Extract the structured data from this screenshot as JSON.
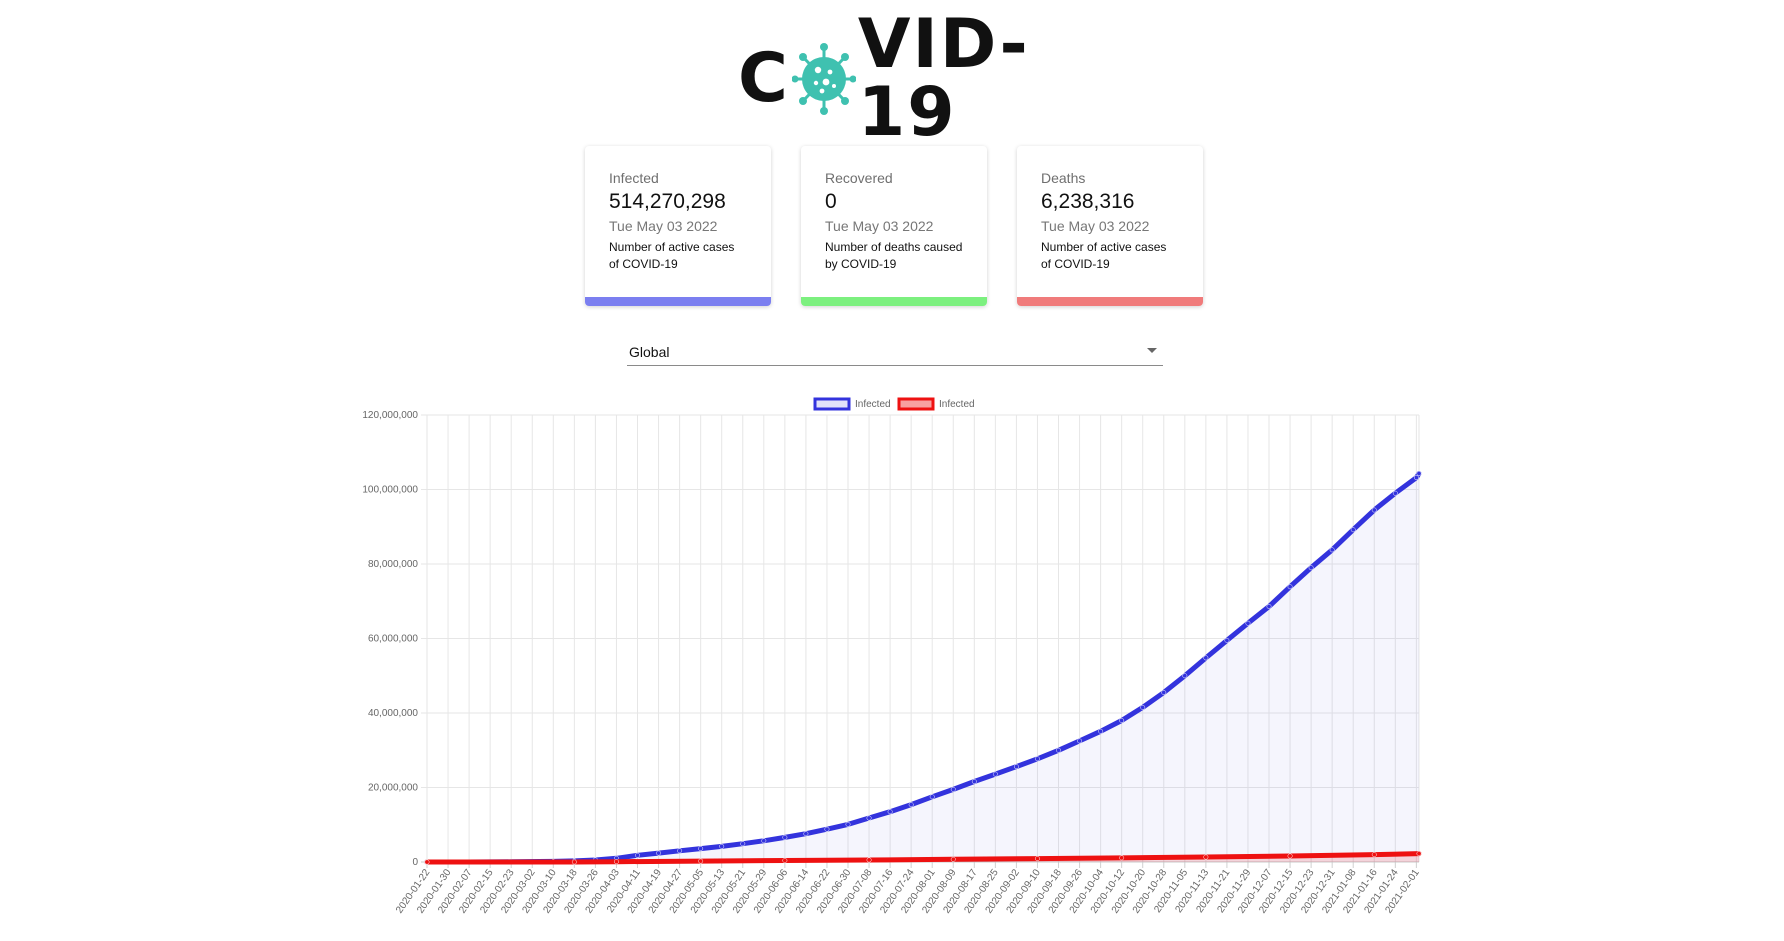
{
  "logo": {
    "text_before": "C",
    "text_after": "VID-19",
    "virus_icon": "virus-icon",
    "virus_color": "#3fc1b0"
  },
  "cards": [
    {
      "label": "Infected",
      "value": "514,270,298",
      "date": "Tue May 03 2022",
      "description": "Number of active cases of COVID-19",
      "bar_color": "#7b7ff0"
    },
    {
      "label": "Recovered",
      "value": "0",
      "date": "Tue May 03 2022",
      "description": "Number of deaths caused by COVID-19",
      "bar_color": "#7cf07f"
    },
    {
      "label": "Deaths",
      "value": "6,238,316",
      "date": "Tue May 03 2022",
      "description": "Number of active cases of COVID-19",
      "bar_color": "#f07b7b"
    }
  ],
  "country_select": {
    "value": "Global"
  },
  "chart_data": {
    "type": "line",
    "legend_position": "top",
    "grid": true,
    "ylim": [
      0,
      120000000
    ],
    "y_ticks": [
      0,
      20000000,
      40000000,
      60000000,
      80000000,
      100000000,
      120000000
    ],
    "y_tick_labels": [
      "0",
      "20,000,000",
      "40,000,000",
      "60,000,000",
      "80,000,000",
      "100,000,000",
      "120,000,000"
    ],
    "x_tick_labels": [
      "2020-01-22",
      "2020-01-30",
      "2020-02-07",
      "2020-02-15",
      "2020-02-23",
      "2020-03-02",
      "2020-03-10",
      "2020-03-18",
      "2020-03-26",
      "2020-04-03",
      "2020-04-11",
      "2020-04-19",
      "2020-04-27",
      "2020-05-05",
      "2020-05-13",
      "2020-05-21",
      "2020-05-29",
      "2020-06-06",
      "2020-06-14",
      "2020-06-22",
      "2020-06-30",
      "2020-07-08",
      "2020-07-16",
      "2020-07-24",
      "2020-08-01",
      "2020-08-09",
      "2020-08-17",
      "2020-08-25",
      "2020-09-02",
      "2020-09-10",
      "2020-09-18",
      "2020-09-26",
      "2020-10-04",
      "2020-10-12",
      "2020-10-20",
      "2020-10-28",
      "2020-11-05",
      "2020-11-13",
      "2020-11-21",
      "2020-11-29",
      "2020-12-07",
      "2020-12-15",
      "2020-12-23",
      "2020-12-31",
      "2021-01-08",
      "2021-01-16",
      "2021-01-24",
      "2021-02-01"
    ],
    "series": [
      {
        "name": "Infected",
        "color": "#3333dd",
        "fill": "rgba(51,51,221,0.15)",
        "x": [
          "2020-01-22",
          "2020-02-07",
          "2020-02-23",
          "2020-03-10",
          "2020-03-18",
          "2020-03-26",
          "2020-04-03",
          "2020-04-11",
          "2020-04-19",
          "2020-04-27",
          "2020-05-05",
          "2020-05-13",
          "2020-05-21",
          "2020-05-29",
          "2020-06-06",
          "2020-06-14",
          "2020-06-22",
          "2020-06-30",
          "2020-07-08",
          "2020-07-16",
          "2020-07-24",
          "2020-08-01",
          "2020-08-09",
          "2020-08-17",
          "2020-08-25",
          "2020-09-02",
          "2020-09-10",
          "2020-09-18",
          "2020-09-26",
          "2020-10-04",
          "2020-10-12",
          "2020-10-20",
          "2020-10-28",
          "2020-11-05",
          "2020-11-13",
          "2020-11-21",
          "2020-11-29",
          "2020-12-07",
          "2020-12-15",
          "2020-12-23",
          "2020-12-31",
          "2021-01-08",
          "2021-01-16",
          "2021-01-24",
          "2021-02-01",
          "2021-02-02"
        ],
        "values": [
          0,
          0,
          50000,
          150000,
          300000,
          550000,
          1000000,
          1800000,
          2400000,
          3000000,
          3600000,
          4200000,
          4900000,
          5700000,
          6600000,
          7600000,
          8800000,
          10100000,
          11800000,
          13500000,
          15400000,
          17500000,
          19500000,
          21600000,
          23600000,
          25600000,
          27700000,
          30000000,
          32500000,
          35100000,
          38000000,
          41500000,
          45500000,
          50000000,
          54800000,
          59500000,
          64100000,
          68600000,
          73900000,
          79000000,
          83800000,
          89200000,
          94500000,
          99000000,
          103200000,
          104300000
        ]
      },
      {
        "name": "Infected",
        "color": "#ee1111",
        "fill": "rgba(238,17,17,0.4)",
        "x": [
          "2020-01-22",
          "2020-03-18",
          "2020-04-03",
          "2020-05-05",
          "2020-06-06",
          "2020-07-08",
          "2020-08-09",
          "2020-09-10",
          "2020-10-12",
          "2020-11-13",
          "2020-12-15",
          "2021-01-16",
          "2021-02-02"
        ],
        "values": [
          0,
          10000,
          90000,
          250000,
          400000,
          550000,
          730000,
          910000,
          1110000,
          1330000,
          1620000,
          1980000,
          2260000
        ]
      }
    ]
  }
}
